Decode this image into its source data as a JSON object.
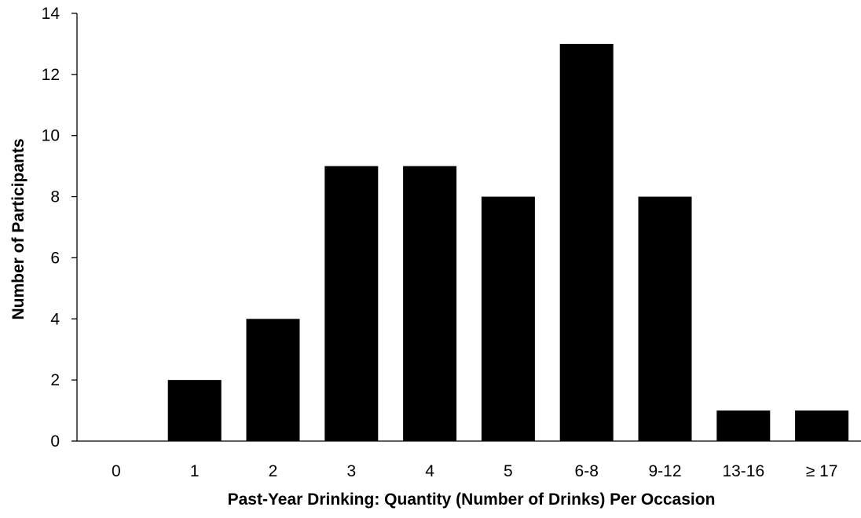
{
  "chart_data": {
    "type": "bar",
    "title": "",
    "xlabel": "Past-Year Drinking: Quantity (Number of Drinks) Per Occasion",
    "ylabel": "Number of Participants",
    "categories": [
      "0",
      "1",
      "2",
      "3",
      "4",
      "5",
      "6-8",
      "9-12",
      "13-16",
      "≥ 17"
    ],
    "values": [
      0,
      2,
      4,
      9,
      9,
      8,
      13,
      8,
      1,
      1
    ],
    "ylim": [
      0,
      14
    ],
    "yticks": [
      0,
      2,
      4,
      6,
      8,
      10,
      12,
      14
    ],
    "grid": false,
    "legend": "none",
    "bar_color": "#000000",
    "axis_color": "#000000"
  }
}
